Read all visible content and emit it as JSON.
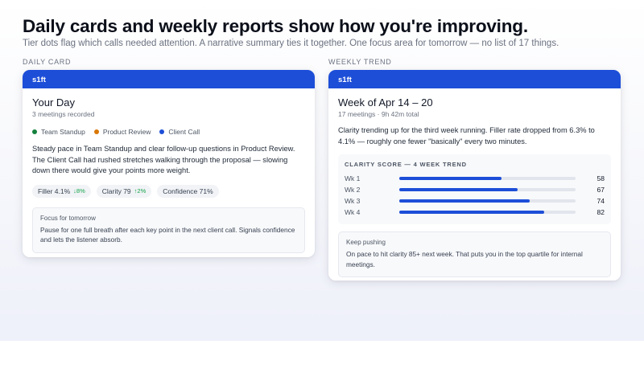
{
  "headline": "Daily cards and weekly reports show how you're improving.",
  "subline": "Tier dots flag which calls needed attention. A narrative summary ties it together. One focus area for tomorrow — no list of 17 things.",
  "daily": {
    "section_label": "DAILY CARD",
    "brand": "s1ft",
    "title": "Your Day",
    "subtitle": "3 meetings recorded",
    "tiers": [
      {
        "label": "Team Standup",
        "color": "#15803d"
      },
      {
        "label": "Product Review",
        "color": "#d97706"
      },
      {
        "label": "Client Call",
        "color": "#1d4ed8"
      }
    ],
    "narrative": "Steady pace in Team Standup and clear follow-up questions in Product Review. The Client Call had rushed stretches walking through the proposal — slowing down there would give your points more weight.",
    "chips": [
      {
        "label": "Filler 4.1%",
        "delta": "↓8%"
      },
      {
        "label": "Clarity 79",
        "delta": "↑2%"
      },
      {
        "label": "Confidence 71%",
        "delta": ""
      }
    ],
    "focus": {
      "label": "Focus for tomorrow",
      "text": "Pause for one full breath after each key point in the next client call. Signals confidence and lets the listener absorb."
    }
  },
  "weekly": {
    "section_label": "WEEKLY TREND",
    "brand": "s1ft",
    "title": "Week of Apr 14 – 20",
    "subtitle": "17 meetings · 9h 42m total",
    "narrative": "Clarity trending up for the third week running. Filler rate dropped from 6.3% to 4.1% — roughly one fewer \"basically\" every two minutes.",
    "trend_label": "CLARITY SCORE — 4 WEEK TREND",
    "trend": [
      {
        "week": "Wk 1",
        "score": 58
      },
      {
        "week": "Wk 2",
        "score": 67
      },
      {
        "week": "Wk 3",
        "score": 74
      },
      {
        "week": "Wk 4",
        "score": 82
      }
    ],
    "trend_max": 100,
    "keep": {
      "label": "Keep pushing",
      "text": "On pace to hit clarity 85+ next week. That puts you in the top quartile for internal meetings."
    }
  }
}
